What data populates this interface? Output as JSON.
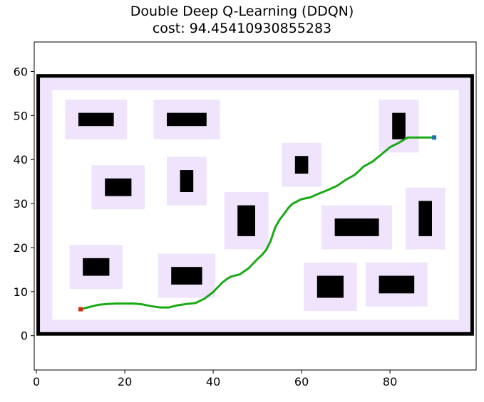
{
  "chart_data": {
    "type": "line",
    "title": "Double Deep Q-Learning (DDQN)",
    "subtitle": "cost: 94.45410930855283",
    "xlabel": "",
    "ylabel": "",
    "xlim": [
      -0.5,
      99.5
    ],
    "ylim": [
      -7.8,
      66.7
    ],
    "x_ticks": [
      0,
      20,
      40,
      60,
      80
    ],
    "y_ticks": [
      0,
      10,
      20,
      30,
      40,
      50,
      60
    ],
    "grid": false,
    "colors": {
      "border": "#000000",
      "padding": "#efe4fc",
      "free_space": "#ffffff",
      "obstacle": "#000000",
      "path": "#1aaa16",
      "start": "#d62a10",
      "goal": "#1f6fb4"
    },
    "boundary": {
      "x0": 0,
      "y0": 0,
      "x1": 99,
      "y1": 59.4,
      "inner_x0": 3.6,
      "inner_y0": 3.6,
      "inner_x1": 95.6,
      "inner_y1": 55.8
    },
    "obstacles": [
      {
        "x0": 9.5,
        "y0": 47.6,
        "x1": 17.5,
        "y1": 50.6,
        "pad": 3
      },
      {
        "x0": 29.5,
        "y0": 47.6,
        "x1": 38.5,
        "y1": 50.6,
        "pad": 3
      },
      {
        "x0": 80.5,
        "y0": 44.6,
        "x1": 83.5,
        "y1": 50.6,
        "pad": 3
      },
      {
        "x0": 58.5,
        "y0": 36.8,
        "x1": 61.5,
        "y1": 40.8,
        "pad": 3
      },
      {
        "x0": 15.5,
        "y0": 31.7,
        "x1": 21.5,
        "y1": 35.7,
        "pad": 3
      },
      {
        "x0": 32.5,
        "y0": 32.6,
        "x1": 35.5,
        "y1": 37.6,
        "pad": 3
      },
      {
        "x0": 45.5,
        "y0": 22.6,
        "x1": 49.5,
        "y1": 29.6,
        "pad": 3
      },
      {
        "x0": 67.5,
        "y0": 22.6,
        "x1": 77.5,
        "y1": 26.6,
        "pad": 3
      },
      {
        "x0": 86.5,
        "y0": 22.6,
        "x1": 89.5,
        "y1": 30.6,
        "pad": 3
      },
      {
        "x0": 10.5,
        "y0": 13.6,
        "x1": 16.5,
        "y1": 17.6,
        "pad": 3
      },
      {
        "x0": 30.5,
        "y0": 11.6,
        "x1": 37.5,
        "y1": 15.6,
        "pad": 3
      },
      {
        "x0": 63.5,
        "y0": 8.6,
        "x1": 69.5,
        "y1": 13.6,
        "pad": 3
      },
      {
        "x0": 77.5,
        "y0": 9.6,
        "x1": 85.5,
        "y1": 13.6,
        "pad": 3
      }
    ],
    "start": {
      "x": 10,
      "y": 6
    },
    "goal": {
      "x": 90,
      "y": 45
    },
    "series": [
      {
        "x": [
          10,
          12,
          14,
          16,
          18,
          20,
          22,
          24,
          26,
          28,
          30,
          32,
          34,
          36,
          38,
          40,
          42,
          43,
          44,
          46,
          48,
          50,
          51,
          52,
          53,
          54,
          55,
          56,
          57,
          58,
          60,
          62,
          64,
          66,
          68,
          70,
          72,
          73,
          74,
          76,
          78,
          80,
          82,
          83,
          84,
          85,
          86,
          87,
          88,
          89,
          90
        ],
        "y": [
          6,
          6.5,
          7,
          7.2,
          7.3,
          7.3,
          7.3,
          7.1,
          6.7,
          6.4,
          6.4,
          6.9,
          7.2,
          7.4,
          8.4,
          9.9,
          12.0,
          12.8,
          13.4,
          13.9,
          15.3,
          17.4,
          18.3,
          19.5,
          21.5,
          24.5,
          26.3,
          27.6,
          29.0,
          30.0,
          31.0,
          31.4,
          32.3,
          33.1,
          34.0,
          35.4,
          36.5,
          37.4,
          38.4,
          39.5,
          41.1,
          42.8,
          43.8,
          44.4,
          45,
          45,
          45,
          45,
          45,
          45,
          45
        ]
      }
    ]
  }
}
